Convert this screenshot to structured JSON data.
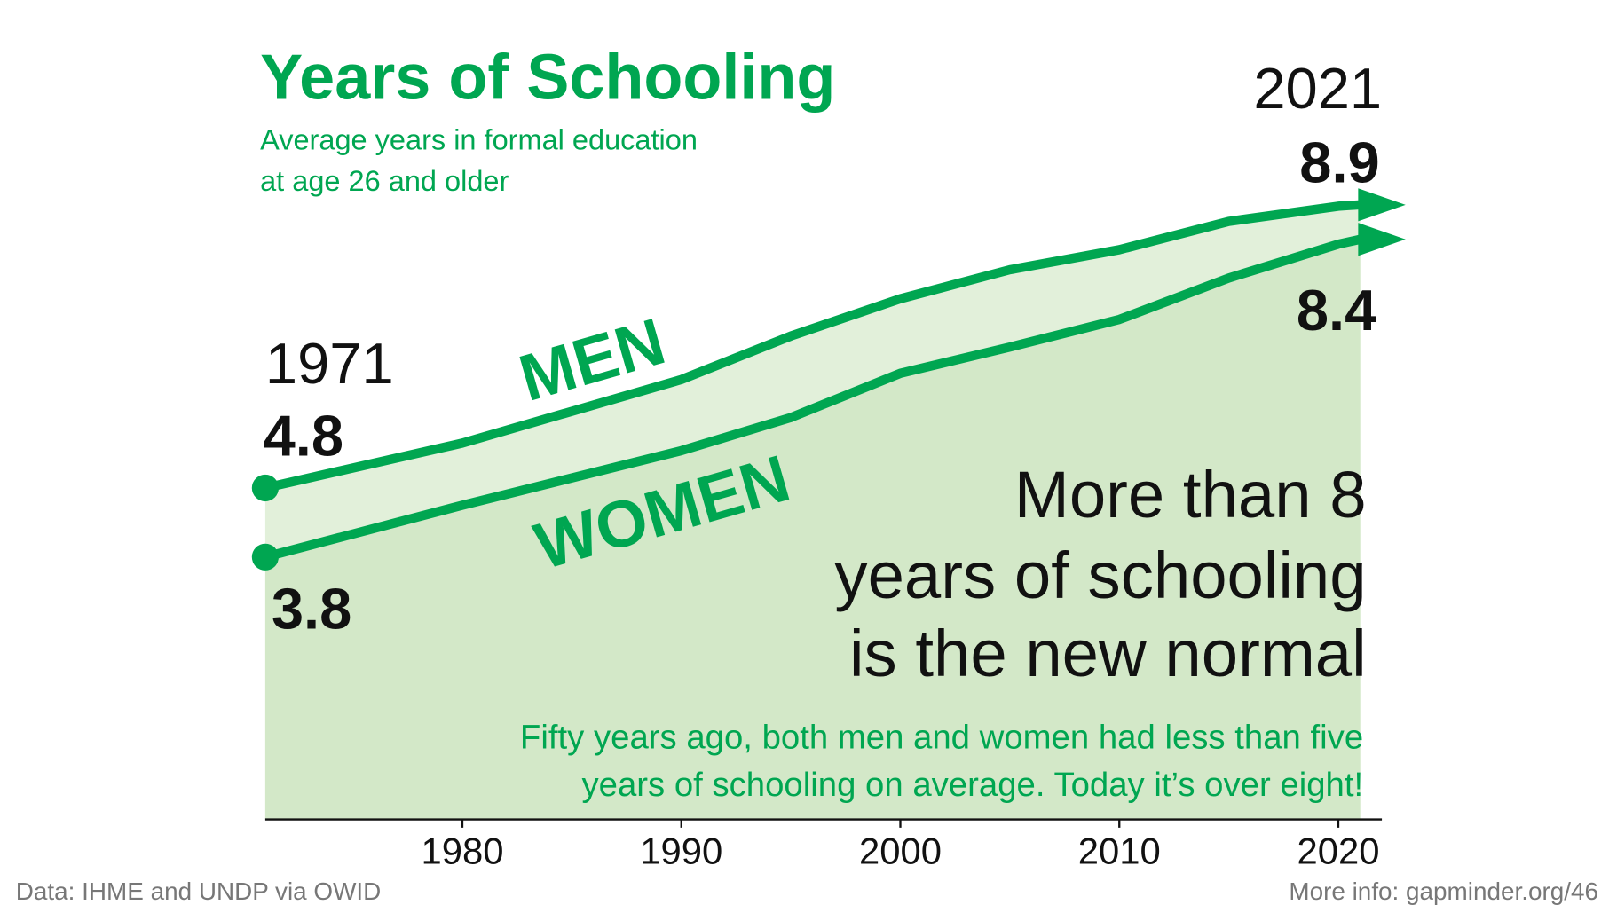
{
  "chart_data": {
    "type": "line",
    "title": "Years of Schooling",
    "subtitle": [
      "Average years in formal education",
      "at age 26 and older"
    ],
    "x": [
      1971,
      1980,
      1990,
      1995,
      2000,
      2005,
      2010,
      2015,
      2020,
      2021
    ],
    "xlim": [
      1971,
      2021
    ],
    "xticks": [
      1980,
      1990,
      2000,
      2010,
      2020
    ],
    "ylim": [
      0,
      9
    ],
    "series": [
      {
        "name": "MEN",
        "color": "#00a651",
        "fill": "#e2f0da",
        "values": [
          4.8,
          5.45,
          6.37,
          7.0,
          7.54,
          7.96,
          8.25,
          8.66,
          8.88,
          8.9
        ]
      },
      {
        "name": "WOMEN",
        "color": "#00a651",
        "fill": "#d3e8c8",
        "values": [
          3.8,
          4.55,
          5.34,
          5.82,
          6.46,
          6.84,
          7.24,
          7.84,
          8.33,
          8.4
        ]
      }
    ],
    "annotation": [
      "More than 8",
      "years of schooling",
      "is the new normal"
    ],
    "note": [
      "Fifty years ago, both men and women had less than five",
      "years of schooling on average. Today it’s over eight!"
    ],
    "source": "Data: IHME and UNDP via OWID",
    "more_info": "More info: gapminder.org/46"
  }
}
